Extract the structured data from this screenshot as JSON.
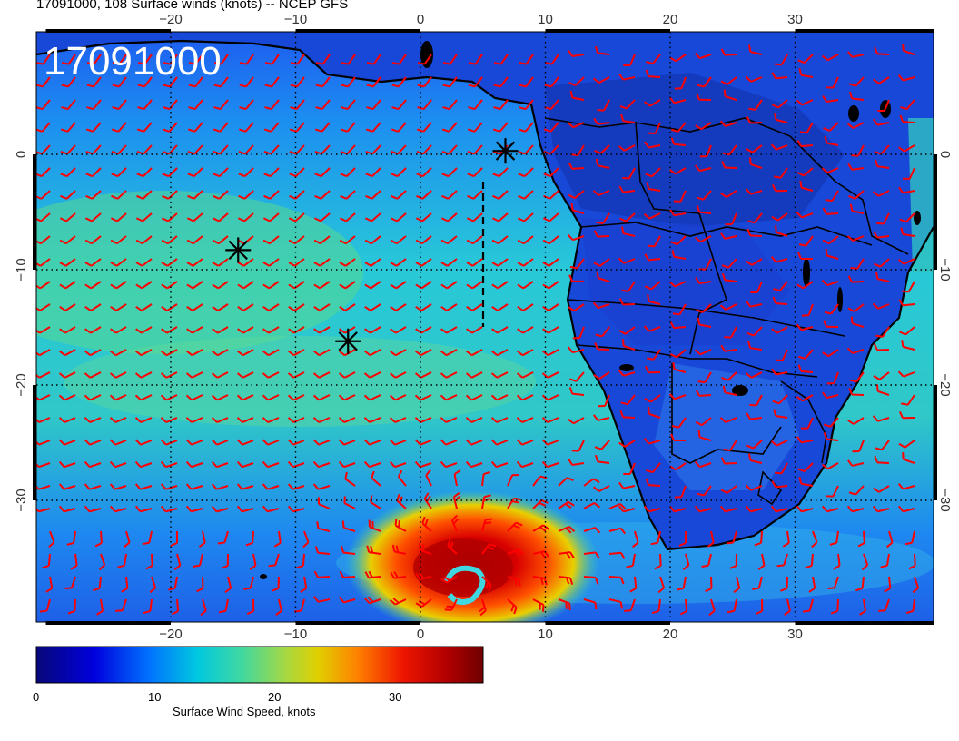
{
  "title": "17091000, 108 Surface winds (knots) -- NCEP GFS",
  "stamp": "17091000",
  "axes": {
    "lon_ticks": [
      "−20",
      "−10",
      "0",
      "10",
      "20",
      "30"
    ],
    "lat_ticks": [
      "0",
      "−10",
      "−20",
      "−30"
    ]
  },
  "colorbar": {
    "label": "Surface Wind Speed, knots",
    "ticks": [
      "0",
      "10",
      "20",
      "30"
    ],
    "range": [
      0,
      37
    ]
  },
  "colors": {
    "barb": "#ff0000",
    "land_border": "#000000",
    "grid": "#000000"
  },
  "markers": [
    {
      "name": "marker-1",
      "lon": 6.8,
      "lat": 0.3
    },
    {
      "name": "marker-2",
      "lon": -14.6,
      "lat": -8.3
    },
    {
      "name": "marker-3",
      "lon": -5.8,
      "lat": -16.2
    }
  ]
}
